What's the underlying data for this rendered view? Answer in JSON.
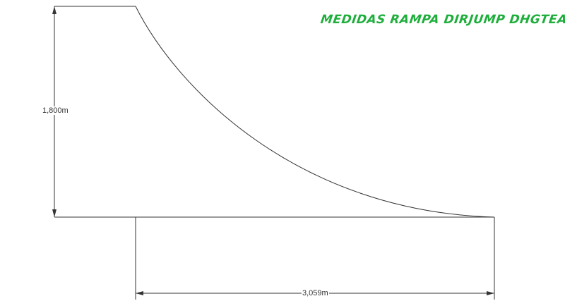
{
  "title": "MEDIDAS RAMPA DIRJUMP DHGTEAM",
  "dimensions": {
    "height_label": "1,800m",
    "length_label": "3,059m"
  },
  "colors": {
    "title": "#1fae3c",
    "lines": "#333333"
  }
}
